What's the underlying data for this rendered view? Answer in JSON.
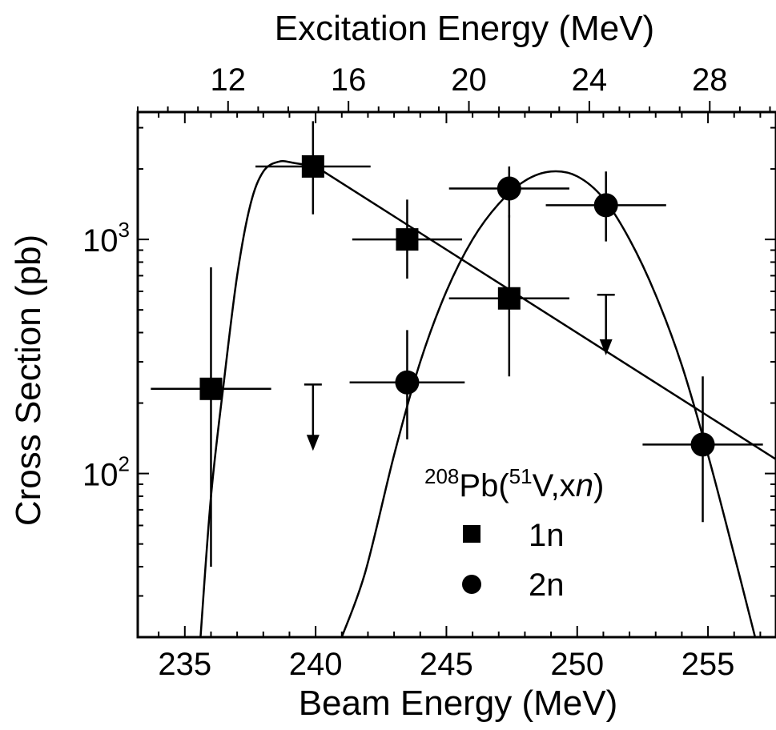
{
  "chart_data": {
    "type": "scatter",
    "title": "",
    "xlabel": "Beam Energy (MeV)",
    "x2label": "Excitation Energy (MeV)",
    "ylabel": "Cross Section (pb)",
    "xlim": [
      233.2,
      257.6
    ],
    "x2lim": [
      9.0,
      30.2
    ],
    "ylim": [
      20,
      3500
    ],
    "yscale": "log",
    "xticks": [
      235,
      240,
      245,
      250,
      255
    ],
    "x2ticks": [
      12,
      16,
      20,
      24,
      28
    ],
    "yticks": [
      {
        "value": 100,
        "base": "10",
        "exp": "2"
      },
      {
        "value": 1000,
        "base": "10",
        "exp": "3"
      }
    ],
    "legend": {
      "placement": "bottom-right",
      "title_parts": [
        "208",
        "Pb(",
        "51",
        "V,x",
        "n",
        ")"
      ],
      "entries": [
        {
          "label": "1n",
          "marker": "square"
        },
        {
          "label": "2n",
          "marker": "circle"
        }
      ]
    },
    "series": [
      {
        "name": "1n",
        "marker": "square",
        "points": [
          {
            "x": 236.0,
            "y": 230,
            "xerr": 2.3,
            "ylo": 40,
            "yhi": 760
          },
          {
            "x": 239.9,
            "y": 2050,
            "xerr": 2.2,
            "ylo": 1280,
            "yhi": 3200
          },
          {
            "x": 243.5,
            "y": 1000,
            "xerr": 2.1,
            "ylo": 680,
            "yhi": 1480
          },
          {
            "x": 247.4,
            "y": 560,
            "xerr": 2.3,
            "ylo": 260,
            "yhi": 1270
          }
        ],
        "upper_limits": [
          {
            "x": 239.9,
            "y": 240,
            "lo": 125
          }
        ],
        "fit": [
          {
            "x": 240.0,
            "y": 2050
          },
          {
            "x": 257.6,
            "y": 115
          }
        ]
      },
      {
        "name": "2n",
        "marker": "circle",
        "points": [
          {
            "x": 243.5,
            "y": 245,
            "xerr": 2.2,
            "ylo": 140,
            "yhi": 410
          },
          {
            "x": 247.4,
            "y": 1650,
            "xerr": 2.3,
            "ylo": 1240,
            "yhi": 2050
          },
          {
            "x": 251.1,
            "y": 1400,
            "xerr": 2.3,
            "ylo": 980,
            "yhi": 1950
          },
          {
            "x": 254.8,
            "y": 133,
            "xerr": 2.3,
            "ylo": 62,
            "yhi": 260
          }
        ],
        "upper_limits": [
          {
            "x": 251.1,
            "y": 580,
            "lo": 320
          }
        ],
        "fit": [
          {
            "x": 241.0,
            "y": 20
          },
          {
            "x": 241.9,
            "y": 38
          },
          {
            "x": 243.0,
            "y": 120
          },
          {
            "x": 244.0,
            "y": 300
          },
          {
            "x": 245.0,
            "y": 600
          },
          {
            "x": 246.0,
            "y": 1000
          },
          {
            "x": 247.0,
            "y": 1420
          },
          {
            "x": 248.0,
            "y": 1780
          },
          {
            "x": 249.0,
            "y": 1950
          },
          {
            "x": 250.0,
            "y": 1860
          },
          {
            "x": 251.0,
            "y": 1500
          },
          {
            "x": 252.0,
            "y": 1000
          },
          {
            "x": 253.0,
            "y": 580
          },
          {
            "x": 254.0,
            "y": 290
          },
          {
            "x": 255.0,
            "y": 120
          },
          {
            "x": 256.0,
            "y": 45
          },
          {
            "x": 256.8,
            "y": 20
          }
        ]
      },
      {
        "name": "1n-peak",
        "marker": "none",
        "points": [],
        "upper_limits": [],
        "fit": [
          {
            "x": 235.6,
            "y": 20
          },
          {
            "x": 236.0,
            "y": 80
          },
          {
            "x": 236.5,
            "y": 250
          },
          {
            "x": 237.0,
            "y": 700
          },
          {
            "x": 237.5,
            "y": 1400
          },
          {
            "x": 238.0,
            "y": 1950
          },
          {
            "x": 238.6,
            "y": 2150
          },
          {
            "x": 239.2,
            "y": 2120
          },
          {
            "x": 240.0,
            "y": 2050
          }
        ]
      }
    ]
  }
}
